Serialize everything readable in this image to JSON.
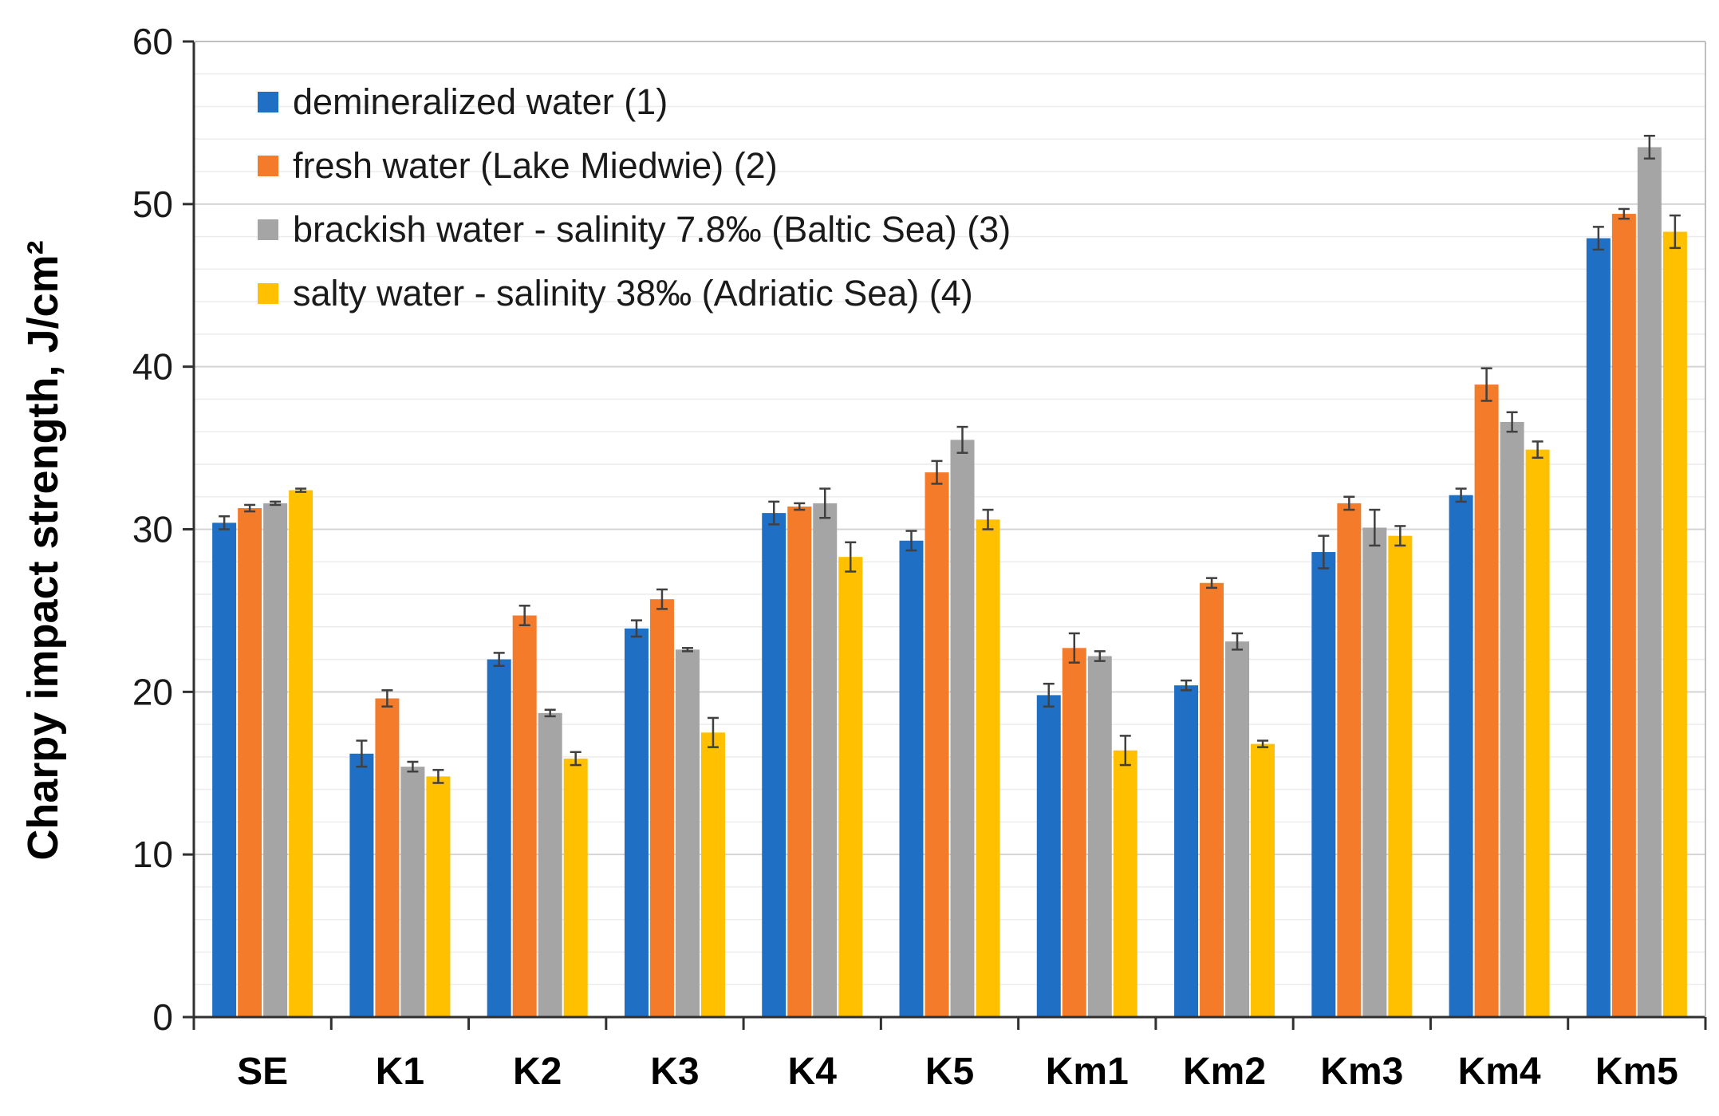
{
  "chart_data": {
    "type": "bar",
    "title": "",
    "xlabel": "",
    "ylabel": "Charpy impact strength, J/cm²",
    "ylim": [
      0,
      60
    ],
    "yticks": [
      0,
      10,
      20,
      30,
      40,
      50,
      60
    ],
    "grid": true,
    "legend_position": "top-left",
    "categories": [
      "SE",
      "K1",
      "K2",
      "K3",
      "K4",
      "K5",
      "Km1",
      "Km2",
      "Km3",
      "Km4",
      "Km5"
    ],
    "series": [
      {
        "name": "demineralized water (1)",
        "color": "#1f6fc5",
        "values": [
          30.4,
          16.2,
          22.0,
          23.9,
          31.0,
          29.3,
          19.8,
          20.4,
          28.6,
          32.1,
          47.9
        ],
        "errors": [
          0.4,
          0.8,
          0.4,
          0.5,
          0.7,
          0.6,
          0.7,
          0.3,
          1.0,
          0.4,
          0.7
        ]
      },
      {
        "name": "fresh water (Lake Miedwie) (2)",
        "color": "#f47b2a",
        "values": [
          31.3,
          19.6,
          24.7,
          25.7,
          31.4,
          33.5,
          22.7,
          26.7,
          31.6,
          38.9,
          49.4
        ],
        "errors": [
          0.2,
          0.5,
          0.6,
          0.6,
          0.2,
          0.7,
          0.9,
          0.3,
          0.4,
          1.0,
          0.3
        ]
      },
      {
        "name": "brackish water - salinity 7.8‰ (Baltic Sea) (3)",
        "color": "#a5a5a5",
        "values": [
          31.6,
          15.4,
          18.7,
          22.6,
          31.6,
          35.5,
          22.2,
          23.1,
          30.1,
          36.6,
          53.5
        ],
        "errors": [
          0.1,
          0.3,
          0.2,
          0.1,
          0.9,
          0.8,
          0.3,
          0.5,
          1.1,
          0.6,
          0.7
        ]
      },
      {
        "name": "salty water - salinity 38‰ (Adriatic Sea) (4)",
        "color": "#ffc000",
        "values": [
          32.4,
          14.8,
          15.9,
          17.5,
          28.3,
          30.6,
          16.4,
          16.8,
          29.6,
          34.9,
          48.3
        ],
        "errors": [
          0.1,
          0.4,
          0.4,
          0.9,
          0.9,
          0.6,
          0.9,
          0.2,
          0.6,
          0.5,
          1.0
        ]
      }
    ]
  }
}
